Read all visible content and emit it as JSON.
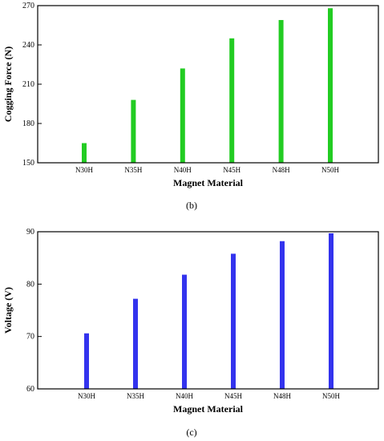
{
  "chart_data": [
    {
      "type": "bar",
      "panel_label": "(b)",
      "xlabel": "Magnet Material",
      "ylabel": "Cogging Force (N)",
      "categories": [
        "N30H",
        "N35H",
        "N40H",
        "N45H",
        "N48H",
        "N50H"
      ],
      "values": [
        165,
        198,
        222,
        245,
        259,
        268
      ],
      "ylim": [
        150,
        270
      ],
      "yticks": [
        150,
        180,
        210,
        240,
        270
      ],
      "bar_color": "#22cc22",
      "grid": false,
      "legend": "none"
    },
    {
      "type": "bar",
      "panel_label": "(c)",
      "xlabel": "Magnet Material",
      "ylabel": "Voltage (V)",
      "categories": [
        "N30H",
        "N35H",
        "N40H",
        "N45H",
        "N48H",
        "N50H"
      ],
      "values": [
        70.6,
        77.2,
        81.8,
        85.8,
        88.2,
        89.7
      ],
      "ylim": [
        60,
        90
      ],
      "yticks": [
        60,
        70,
        80,
        90
      ],
      "bar_color": "#3333ee",
      "grid": false,
      "legend": "none"
    }
  ]
}
